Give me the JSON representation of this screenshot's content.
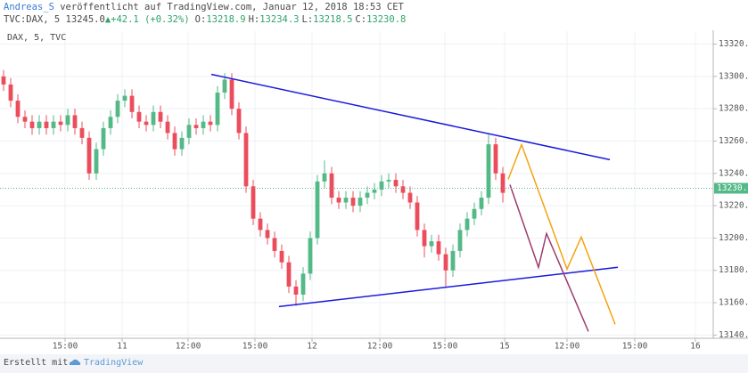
{
  "header": {
    "author": "Andreas_S",
    "published": "veröffentlicht auf TradingView.com, Januar 12, 2018 18:53 CET",
    "symbol": "TVC:DAX, 5",
    "price": "13245.0",
    "change": "+42.1 (+0.32%)",
    "ohlc": [
      {
        "label": "O:",
        "value": "13218.9"
      },
      {
        "label": "H:",
        "value": "13234.3"
      },
      {
        "label": "L:",
        "value": "13218.5"
      },
      {
        "label": "C:",
        "value": "13230.8"
      }
    ]
  },
  "footer": {
    "made_with": "Erstellt mit",
    "brand": "TradingView"
  },
  "chart_data": {
    "type": "candlestick",
    "title": "DAX, 5, TVC",
    "up_color": "#53b987",
    "down_color": "#eb4d5c",
    "grid": true,
    "xlim": [
      0,
      200
    ],
    "ylim": [
      13138,
      13328
    ],
    "xticks": [
      {
        "value": 18.25,
        "label": "15:00"
      },
      {
        "value": 34.25,
        "label": "11"
      },
      {
        "value": 52.75,
        "label": "12:00"
      },
      {
        "value": 71.5,
        "label": "15:00"
      },
      {
        "value": 87.5,
        "label": "12"
      },
      {
        "value": 106.5,
        "label": "12:00"
      },
      {
        "value": 124.75,
        "label": "15:00"
      },
      {
        "value": 141.5,
        "label": "15"
      },
      {
        "value": 159,
        "label": "12:00"
      },
      {
        "value": 178,
        "label": "15:00"
      },
      {
        "value": 195,
        "label": "16"
      }
    ],
    "yticks": [
      {
        "value": 13140,
        "label": "13140.0"
      },
      {
        "value": 13160,
        "label": "13160.0"
      },
      {
        "value": 13180,
        "label": "13180.0"
      },
      {
        "value": 13200,
        "label": "13200.0"
      },
      {
        "value": 13220,
        "label": "13220.0"
      },
      {
        "value": 13240,
        "label": "13240.0"
      },
      {
        "value": 13260,
        "label": "13260.0"
      },
      {
        "value": 13280,
        "label": "13280.0"
      },
      {
        "value": 13300,
        "label": "13300.0"
      },
      {
        "value": 13320,
        "label": "13320.0"
      }
    ],
    "last_price": 13230.8,
    "last_price_color": "#53b987",
    "x": [
      1,
      3,
      5,
      7,
      9,
      11,
      13,
      15,
      17,
      19,
      21,
      23,
      25,
      27,
      29,
      31,
      33,
      35,
      37,
      39,
      41,
      43,
      45,
      47,
      49,
      51,
      53,
      55,
      57,
      59,
      61,
      63,
      65,
      67,
      69,
      71,
      73,
      75,
      77,
      79,
      81,
      83,
      85,
      87,
      89,
      91,
      93,
      95,
      97,
      99,
      101,
      103,
      105,
      107,
      109,
      111,
      113,
      115,
      117,
      119,
      121,
      123,
      125,
      127,
      129,
      131,
      133,
      135,
      137,
      139,
      141
    ],
    "open": [
      13300,
      13295,
      13285,
      13275,
      13272,
      13268,
      13272,
      13268,
      13272,
      13270,
      13276,
      13268,
      13262,
      13240,
      13255,
      13268,
      13275,
      13285,
      13288,
      13278,
      13272,
      13270,
      13278,
      13272,
      13265,
      13255,
      13262,
      13270,
      13268,
      13272,
      13270,
      13290,
      13298,
      13280,
      13265,
      13232,
      13212,
      13205,
      13200,
      13192,
      13185,
      13170,
      13165,
      13178,
      13200,
      13235,
      13240,
      13225,
      13222,
      13225,
      13220,
      13225,
      13228,
      13230,
      13235,
      13236,
      13232,
      13228,
      13222,
      13205,
      13195,
      13198,
      13190,
      13180,
      13192,
      13205,
      13212,
      13218,
      13225,
      13258,
      13240
    ],
    "high": [
      13304,
      13299,
      13289,
      13279,
      13276,
      13276,
      13276,
      13276,
      13276,
      13280,
      13280,
      13272,
      13266,
      13259,
      13272,
      13279,
      13289,
      13292,
      13292,
      13282,
      13276,
      13282,
      13282,
      13276,
      13269,
      13266,
      13274,
      13274,
      13276,
      13276,
      13294,
      13302,
      13302,
      13284,
      13269,
      13236,
      13216,
      13209,
      13204,
      13196,
      13189,
      13174,
      13182,
      13204,
      13239,
      13248,
      13244,
      13229,
      13229,
      13229,
      13229,
      13232,
      13234,
      13239,
      13240,
      13240,
      13236,
      13232,
      13226,
      13209,
      13202,
      13202,
      13194,
      13196,
      13209,
      13216,
      13222,
      13229,
      13264,
      13262,
      13244
    ],
    "low": [
      13291,
      13281,
      13271,
      13268,
      13264,
      13264,
      13264,
      13264,
      13266,
      13266,
      13264,
      13258,
      13236,
      13236,
      13251,
      13264,
      13271,
      13281,
      13274,
      13268,
      13266,
      13266,
      13268,
      13261,
      13251,
      13251,
      13258,
      13264,
      13264,
      13266,
      13266,
      13286,
      13276,
      13261,
      13228,
      13208,
      13201,
      13196,
      13188,
      13181,
      13166,
      13158,
      13161,
      13174,
      13196,
      13231,
      13221,
      13218,
      13218,
      13216,
      13216,
      13221,
      13224,
      13226,
      13231,
      13228,
      13224,
      13218,
      13201,
      13188,
      13191,
      13186,
      13170,
      13176,
      13188,
      13201,
      13208,
      13214,
      13221,
      13236,
      13222
    ],
    "close": [
      13295,
      13285,
      13275,
      13272,
      13268,
      13272,
      13268,
      13272,
      13270,
      13276,
      13268,
      13262,
      13240,
      13255,
      13268,
      13275,
      13285,
      13288,
      13278,
      13272,
      13270,
      13278,
      13272,
      13265,
      13255,
      13262,
      13270,
      13268,
      13272,
      13270,
      13290,
      13298,
      13280,
      13265,
      13232,
      13212,
      13205,
      13200,
      13192,
      13185,
      13170,
      13165,
      13178,
      13200,
      13235,
      13240,
      13225,
      13222,
      13225,
      13220,
      13225,
      13228,
      13230,
      13235,
      13236,
      13232,
      13228,
      13222,
      13205,
      13195,
      13198,
      13190,
      13180,
      13192,
      13205,
      13212,
      13218,
      13225,
      13258,
      13240,
      13228
    ],
    "drawings": [
      {
        "color": "#1a1adb",
        "x": [
          59.25,
          171
        ],
        "y": [
          13301.3,
          13248.5
        ]
      },
      {
        "color": "#1a1adb",
        "x": [
          78.25,
          173.25
        ],
        "y": [
          13157.6,
          13181.9
        ]
      },
      {
        "color": "#9c3c6e",
        "x": [
          143,
          151,
          153.25,
          165
        ],
        "y": [
          13233,
          13181.9,
          13202.8,
          13142.2
        ]
      },
      {
        "color": "#f5a30f",
        "x": [
          142.5,
          146.25,
          159,
          163,
          172.5
        ],
        "y": [
          13236.3,
          13257.8,
          13180.8,
          13200.6,
          13146.6
        ]
      }
    ]
  }
}
